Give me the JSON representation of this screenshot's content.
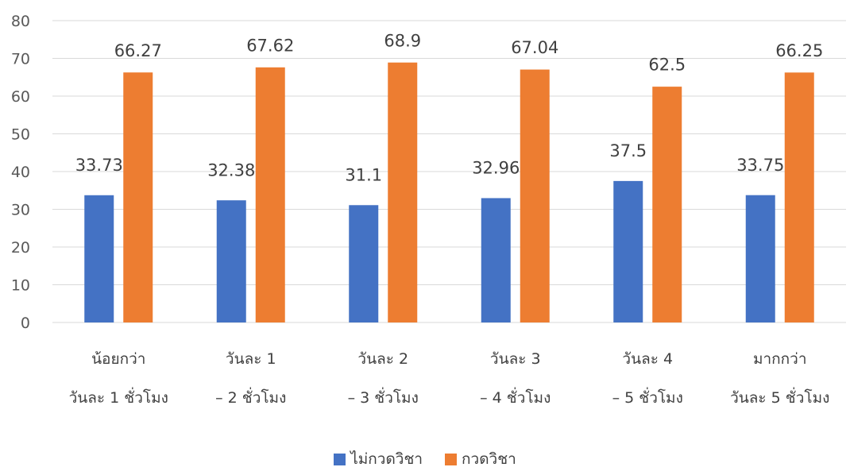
{
  "chart_data": {
    "type": "bar",
    "categories": [
      [
        "น้อยกว่า",
        "วันละ 1 ชั่วโมง"
      ],
      [
        "วันละ 1",
        "– 2 ชั่วโมง"
      ],
      [
        "วันละ 2",
        "– 3 ชั่วโมง"
      ],
      [
        "วันละ 3",
        "– 4 ชั่วโมง"
      ],
      [
        "วันละ 4",
        "– 5 ชั่วโมง"
      ],
      [
        "มากกว่า",
        "วันละ 5 ชั่วโมง"
      ]
    ],
    "series": [
      {
        "name": "ไม่กวดวิชา",
        "color": "#4472C4",
        "values": [
          33.73,
          32.38,
          31.1,
          32.96,
          37.5,
          33.75
        ]
      },
      {
        "name": "กวดวิชา",
        "color": "#ED7D31",
        "values": [
          66.27,
          67.62,
          68.9,
          67.04,
          62.5,
          66.25
        ]
      }
    ],
    "data_labels": [
      [
        "33.73",
        "32.38",
        "31.1",
        "32.96",
        "37.5",
        "33.75"
      ],
      [
        "66.27",
        "67.62",
        "68.9",
        "67.04",
        "62.5",
        "66.25"
      ]
    ],
    "ylim": [
      0,
      80
    ],
    "yticks": [
      "0",
      "10",
      "20",
      "30",
      "40",
      "50",
      "60",
      "70",
      "80"
    ],
    "grid": true,
    "legend_position": "bottom"
  }
}
